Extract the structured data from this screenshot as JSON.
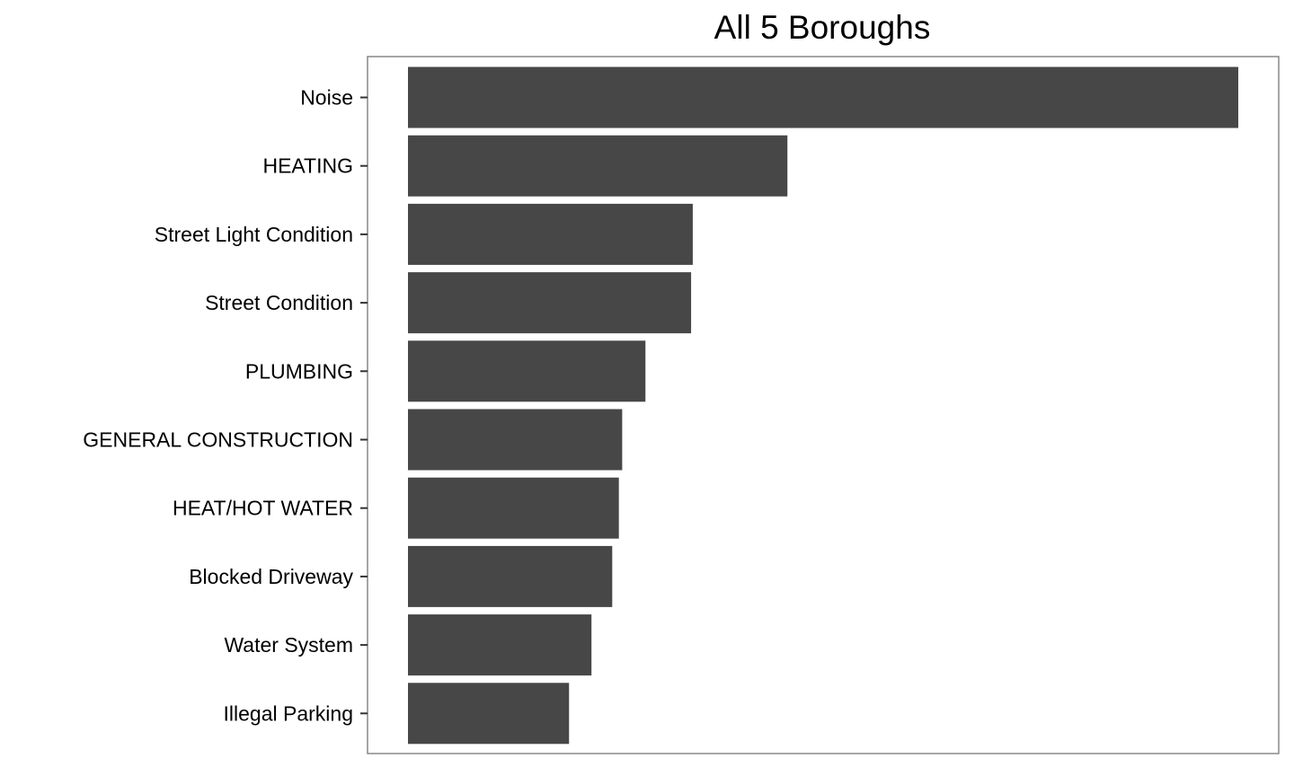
{
  "chart_data": {
    "type": "bar",
    "orientation": "horizontal",
    "title": "All 5 Boroughs",
    "xlabel": "",
    "ylabel": "",
    "categories": [
      "Noise",
      "HEATING",
      "Street Light Condition",
      "Street Condition",
      "PLUMBING",
      "GENERAL CONSTRUCTION",
      "HEAT/HOT WATER",
      "Blocked Driveway",
      "Water System",
      "Illegal Parking"
    ],
    "values": [
      100,
      45.7,
      34.3,
      34.1,
      28.6,
      25.8,
      25.4,
      24.6,
      22.1,
      19.4
    ],
    "value_units": "relative (percent of largest bar; no value axis shown)",
    "xlim": [
      0,
      100
    ],
    "x_axis_visible": false,
    "grid": false,
    "legend": "none",
    "colors": {
      "bar": "#474747",
      "panel_border": "#7f7f7f",
      "tick": "#333333",
      "background": "#ffffff"
    }
  }
}
